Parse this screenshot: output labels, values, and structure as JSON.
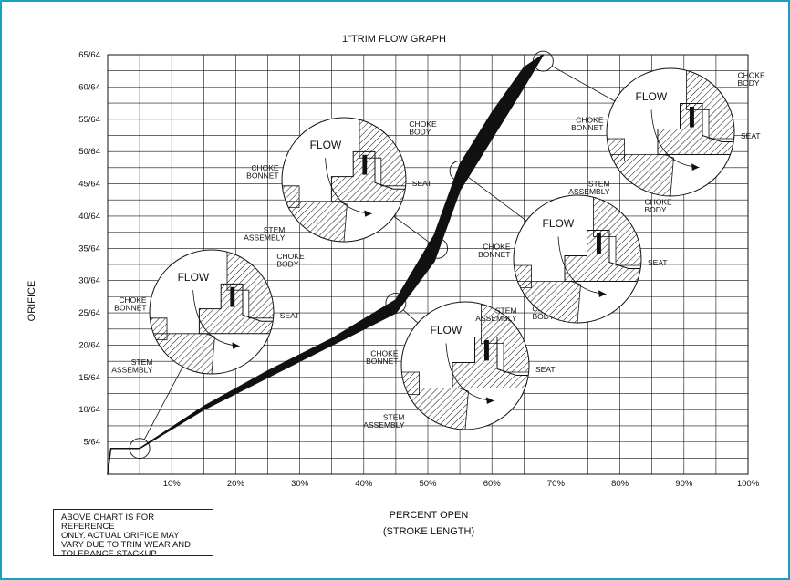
{
  "chart_data": {
    "type": "line",
    "title": "1\"TRIM FLOW GRAPH",
    "xlabel": "PERCENT OPEN",
    "xlabel_sub": "(STROKE LENGTH)",
    "ylabel": "ORIFICE",
    "x_ticks": [
      "10%",
      "20%",
      "30%",
      "40%",
      "50%",
      "60%",
      "70%",
      "80%",
      "90%",
      "100%"
    ],
    "y_ticks": [
      "5/64",
      "10/64",
      "15/64",
      "20/64",
      "25/64",
      "30/64",
      "35/64",
      "40/64",
      "45/64",
      "50/64",
      "55/64",
      "60/64",
      "65/64"
    ],
    "xlim": [
      0,
      100
    ],
    "ylim": [
      0,
      65
    ],
    "grid": true,
    "series": [
      {
        "x": [
          0,
          0.5,
          5,
          15,
          25,
          35,
          45,
          51,
          55,
          60,
          65,
          68
        ],
        "y_low": [
          0,
          4,
          4,
          10,
          15,
          20,
          25,
          33,
          44,
          52,
          60,
          65
        ],
        "y_high": [
          0,
          4,
          4,
          10.5,
          16,
          21,
          27,
          37,
          48,
          56,
          63,
          65
        ],
        "color": "#111111"
      }
    ],
    "markers": [
      {
        "x": 5,
        "y": 4
      },
      {
        "x": 45,
        "y": 26.5
      },
      {
        "x": 51.5,
        "y": 35
      },
      {
        "x": 55,
        "y": 47
      },
      {
        "x": 68,
        "y": 64
      }
    ],
    "detail_views": [
      {
        "id": "d1",
        "labels": {
          "flow": "FLOW",
          "body": "CHOKE\nBODY",
          "bonnet": "CHOKE\nBONNET",
          "seat": "SEAT",
          "stem": "STEM\nASSEMBLY"
        }
      },
      {
        "id": "d2",
        "labels": {
          "flow": "FLOW",
          "body": "CHOKE\nBODY",
          "bonnet": "CHOKE\nBONNET",
          "seat": "SEAT",
          "stem": "STEM\nASSEMBLY"
        }
      },
      {
        "id": "d3",
        "labels": {
          "flow": "FLOW",
          "body": "CHOKE\nBODY",
          "bonnet": "CHOKE\nBONNET",
          "seat": "SEAT",
          "stem": "STEM\nASSEMBLY"
        }
      },
      {
        "id": "d4",
        "labels": {
          "flow": "FLOW",
          "body": "CHOKE\nBODY",
          "bonnet": "CHOKE\nBONNET",
          "seat": "SEAT",
          "stem": "STEM\nASSEMBLY"
        }
      },
      {
        "id": "d5",
        "labels": {
          "flow": "FLOW",
          "body": "CHOKE\nBODY",
          "bonnet": "CHOKE\nBONNET",
          "seat": "SEAT",
          "stem": "STEM\nASSEMBLY"
        }
      }
    ]
  },
  "note": {
    "lines": [
      "ABOVE CHART IS FOR REFERENCE",
      "ONLY.  ACTUAL ORIFICE MAY",
      "VARY DUE TO TRIM WEAR AND",
      "TOLERANCE STACKUP"
    ]
  },
  "colors": {
    "frame": "#1a9fbf",
    "ink": "#111111"
  }
}
